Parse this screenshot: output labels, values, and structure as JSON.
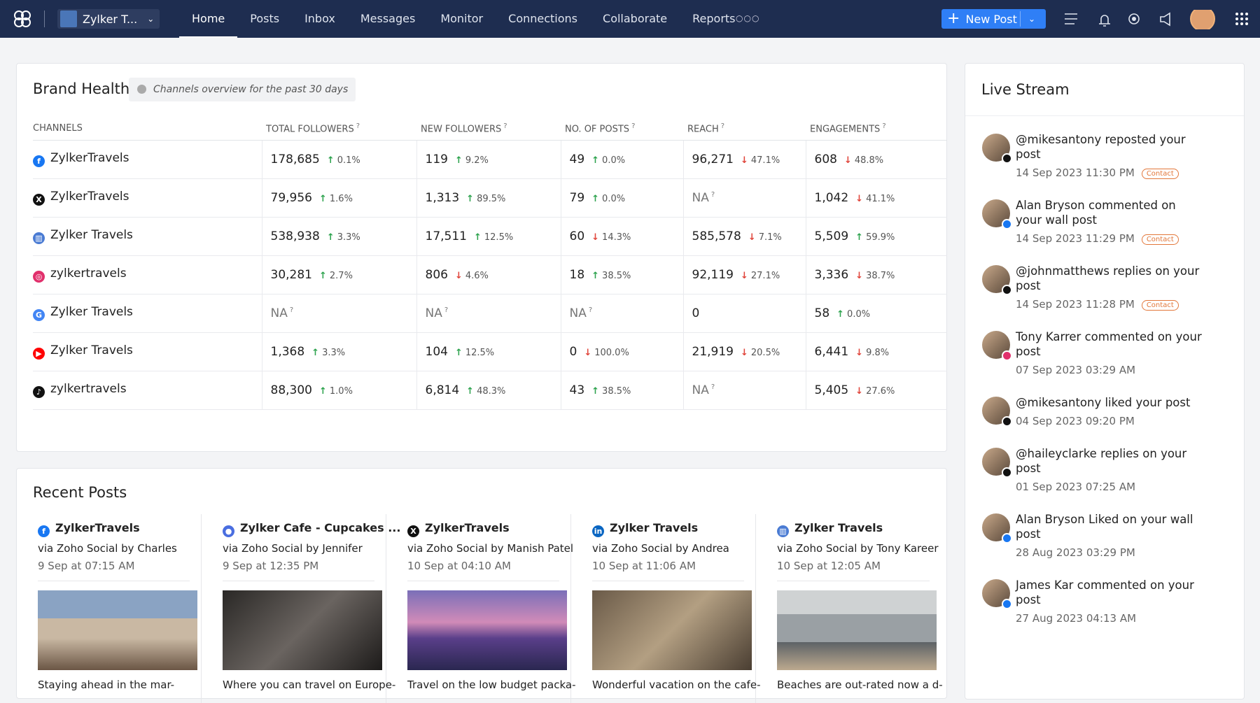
{
  "nav": {
    "brand": "Zylker T...",
    "items": [
      "Home",
      "Posts",
      "Inbox",
      "Messages",
      "Monitor",
      "Connections",
      "Collaborate",
      "Reports"
    ],
    "active": 0,
    "new_post": "New Post"
  },
  "brand_health": {
    "title": "Brand Health",
    "subtitle": "Channels overview for the past 30 days",
    "help_mark": "?",
    "columns": [
      "CHANNELS",
      "TOTAL FOLLOWERS",
      "NEW FOLLOWERS",
      "NO. OF POSTS",
      "REACH",
      "ENGAGEMENTS"
    ],
    "rows": [
      {
        "channel": "ZylkerTravels",
        "network": "facebook",
        "cells": [
          {
            "value": "178,685",
            "change": "0.1%",
            "trend": "up"
          },
          {
            "value": "119",
            "change": "9.2%",
            "trend": "up"
          },
          {
            "value": "49",
            "change": "0.0%",
            "trend": "up"
          },
          {
            "value": "96,271",
            "change": "47.1%",
            "trend": "down"
          },
          {
            "value": "608",
            "change": "48.8%",
            "trend": "down"
          }
        ]
      },
      {
        "channel": "ZylkerTravels",
        "network": "x",
        "cells": [
          {
            "value": "79,956",
            "change": "1.6%",
            "trend": "up"
          },
          {
            "value": "1,313",
            "change": "89.5%",
            "trend": "up"
          },
          {
            "value": "79",
            "change": "0.0%",
            "trend": "up"
          },
          {
            "value": "NA",
            "help": true
          },
          {
            "value": "1,042",
            "change": "41.1%",
            "trend": "down"
          }
        ]
      },
      {
        "channel": "Zylker Travels",
        "network": "gbp",
        "cells": [
          {
            "value": "538,938",
            "change": "3.3%",
            "trend": "up"
          },
          {
            "value": "17,511",
            "change": "12.5%",
            "trend": "up"
          },
          {
            "value": "60",
            "change": "14.3%",
            "trend": "down"
          },
          {
            "value": "585,578",
            "change": "7.1%",
            "trend": "down"
          },
          {
            "value": "5,509",
            "change": "59.9%",
            "trend": "up"
          }
        ]
      },
      {
        "channel": "zylkertravels",
        "network": "instagram",
        "cells": [
          {
            "value": "30,281",
            "change": "2.7%",
            "trend": "up"
          },
          {
            "value": "806",
            "change": "4.6%",
            "trend": "down"
          },
          {
            "value": "18",
            "change": "38.5%",
            "trend": "up"
          },
          {
            "value": "92,119",
            "change": "27.1%",
            "trend": "down"
          },
          {
            "value": "3,336",
            "change": "38.7%",
            "trend": "down"
          }
        ]
      },
      {
        "channel": "Zylker Travels",
        "network": "google",
        "cells": [
          {
            "value": "NA",
            "help": true
          },
          {
            "value": "NA",
            "help": true
          },
          {
            "value": "NA",
            "help": true
          },
          {
            "value": "0"
          },
          {
            "value": "58",
            "change": "0.0%",
            "trend": "up"
          }
        ]
      },
      {
        "channel": "Zylker Travels",
        "network": "youtube",
        "cells": [
          {
            "value": "1,368",
            "change": "3.3%",
            "trend": "up"
          },
          {
            "value": "104",
            "change": "12.5%",
            "trend": "up"
          },
          {
            "value": "0",
            "change": "100.0%",
            "trend": "down"
          },
          {
            "value": "21,919",
            "change": "20.5%",
            "trend": "down"
          },
          {
            "value": "6,441",
            "change": "9.8%",
            "trend": "down"
          }
        ]
      },
      {
        "channel": "zylkertravels",
        "network": "tiktok",
        "cells": [
          {
            "value": "88,300",
            "change": "1.0%",
            "trend": "up"
          },
          {
            "value": "6,814",
            "change": "48.3%",
            "trend": "up"
          },
          {
            "value": "43",
            "change": "38.5%",
            "trend": "up"
          },
          {
            "value": "NA",
            "help": true
          },
          {
            "value": "5,405",
            "change": "27.6%",
            "trend": "down"
          }
        ]
      }
    ]
  },
  "recent_posts": {
    "title": "Recent Posts",
    "posts": [
      {
        "network": "facebook",
        "account": "ZylkerTravels",
        "via": "via Zoho Social by Charles",
        "time": "9 Sep at 07:15 AM",
        "caption": "Staying ahead in the mar-"
      },
      {
        "network": "group",
        "account": "Zylker Cafe - Cupcakes ...",
        "via": "via Zoho Social by Jennifer",
        "time": "9 Sep at 12:35 PM",
        "caption": "Where you can travel on Europe-"
      },
      {
        "network": "x",
        "account": "ZylkerTravels",
        "via": "via Zoho Social by Manish Patel",
        "time": "10 Sep at 04:10 AM",
        "caption": "Travel on the low budget packa-"
      },
      {
        "network": "linkedin",
        "account": "Zylker Travels",
        "via": "via Zoho Social by Andrea",
        "time": "10 Sep at 11:06 AM",
        "caption": "Wonderful vacation on the cafe-"
      },
      {
        "network": "gbp",
        "account": "Zylker Travels",
        "via": "via Zoho Social by Tony Kareer",
        "time": "10 Sep at 12:05 AM",
        "caption": "Beaches are out-rated now a d-"
      }
    ]
  },
  "live_stream": {
    "title": "Live Stream",
    "items": [
      {
        "text": "@mikesantony reposted your post",
        "time": "14 Sep 2023 11:30 PM",
        "tag": "Contact",
        "network": "x"
      },
      {
        "text": "Alan Bryson commented on your wall post",
        "time": "14 Sep 2023 11:29 PM",
        "tag": "Contact",
        "network": "facebook"
      },
      {
        "text": "@johnmatthews replies on your post",
        "time": "14 Sep 2023 11:28 PM",
        "tag": "Contact",
        "network": "x"
      },
      {
        "text": "Tony Karrer commented on your post",
        "time": "07 Sep 2023 03:29 AM",
        "network": "instagram"
      },
      {
        "text": "@mikesantony liked your post",
        "time": "04 Sep 2023 09:20 PM",
        "network": "x"
      },
      {
        "text": "@haileyclarke replies on your post",
        "time": "01 Sep 2023 07:25 AM",
        "network": "x"
      },
      {
        "text": "Alan Bryson Liked on your wall post",
        "time": "28 Aug 2023 03:29 PM",
        "network": "facebook"
      },
      {
        "text": "James Kar commented on your post",
        "time": "27 Aug 2023 04:13 AM",
        "network": "facebook"
      }
    ]
  }
}
